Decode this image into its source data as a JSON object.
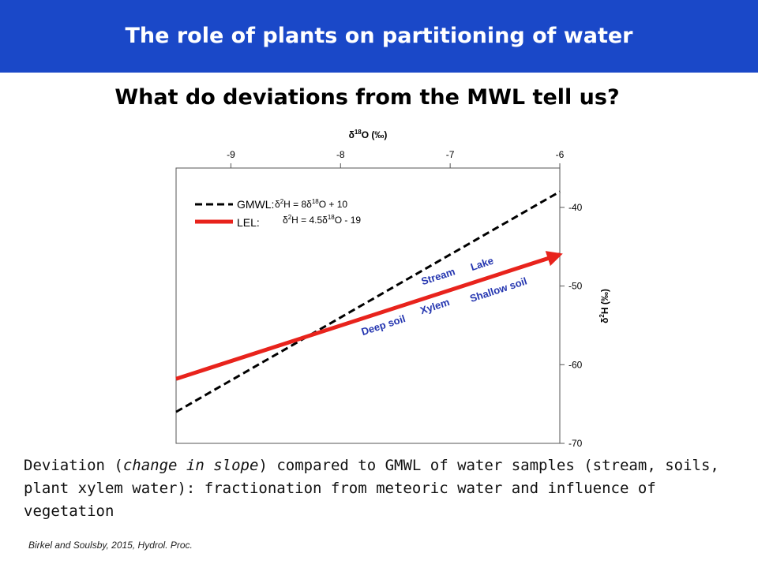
{
  "header": {
    "title": "The role of plants on partitioning of water"
  },
  "subtitle": "What do deviations from the MWL tell us?",
  "chart_data": {
    "type": "line",
    "xlabel_base": "δ",
    "xlabel_sup": "18",
    "xlabel_rest": "O (‰)",
    "ylabel_base": "δ",
    "ylabel_sup": "2",
    "ylabel_rest": "H (‰)",
    "xlim": [
      -9.5,
      -6
    ],
    "ylim": [
      -70,
      -35
    ],
    "x_ticks": [
      -9,
      -8,
      -7,
      -6
    ],
    "y_ticks": [
      -40,
      -50,
      -60,
      -70
    ],
    "x_axis_position": "top",
    "y_axis_position": "right",
    "grid": false,
    "legend_position": "top-left",
    "series": [
      {
        "name": "GMWL:",
        "equation": "δ2H = 8δ18O + 10",
        "equation_parts": [
          "δ",
          "2",
          "H = 8δ",
          "18",
          "O + 10"
        ],
        "style": "dashed",
        "color": "#000000",
        "x": [
          -9.5,
          -6
        ],
        "y": [
          -66,
          -38
        ]
      },
      {
        "name": "LEL:",
        "equation": "δ2H = 4.5δ18O - 19",
        "equation_parts": [
          "δ",
          "2",
          "H = 4.5δ",
          "18",
          "O - 19"
        ],
        "style": "solid-arrow",
        "color": "#e8231c",
        "x": [
          -9.5,
          -6
        ],
        "y": [
          -61.8,
          -46
        ]
      }
    ],
    "annotations": [
      {
        "text": "Stream",
        "x": -7.1,
        "y": -49.2,
        "color": "#2536b0"
      },
      {
        "text": "Lake",
        "x": -6.7,
        "y": -47.6,
        "color": "#2536b0"
      },
      {
        "text": "Xylem",
        "x": -7.13,
        "y": -53.0,
        "color": "#2536b0"
      },
      {
        "text": "Shallow soil",
        "x": -6.55,
        "y": -50.9,
        "color": "#2536b0"
      },
      {
        "text": "Deep soil",
        "x": -7.6,
        "y": -55.4,
        "color": "#2536b0"
      }
    ]
  },
  "caption": {
    "part1": "Deviation (",
    "emphasis": "change in slope",
    "part2": ") compared to GMWL of water samples (stream, soils, plant xylem water): fractionation from meteoric water and influence of vegetation"
  },
  "citation": "Birkel and Soulsby, 2015, Hydrol. Proc."
}
